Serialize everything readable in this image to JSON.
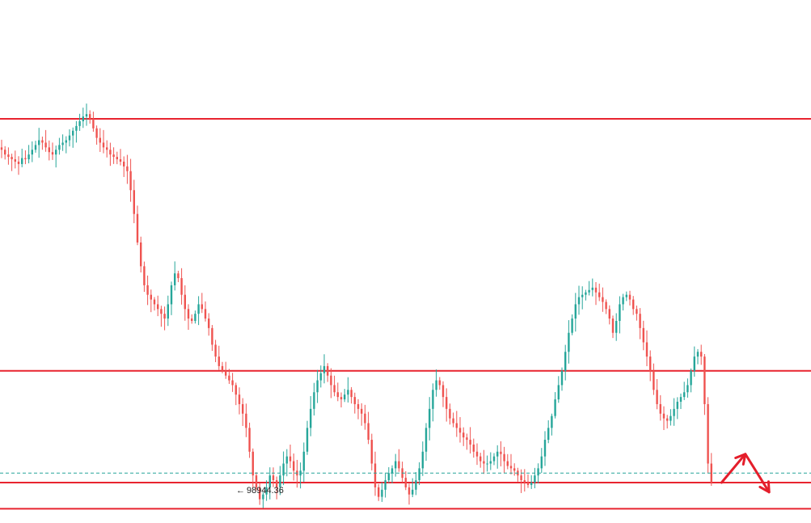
{
  "chart_data": {
    "type": "candlestick",
    "title": "",
    "xlabel": "",
    "ylabel": "",
    "ylim": [
      98900,
      101100
    ],
    "colors": {
      "up": "#26a69a",
      "down": "#ef5350",
      "level": "#e8242f",
      "price": "#26a69a",
      "projection": "#e41e2b"
    },
    "levels": [
      100600,
      99540,
      99070,
      98960
    ],
    "current_price": 99110,
    "session_low": {
      "value": 98944.36,
      "label": "98944.36"
    },
    "projection": [
      {
        "bar": 212,
        "value": 99070
      },
      {
        "bar": 219,
        "value": 99190
      },
      {
        "bar": 226,
        "value": 99030
      }
    ],
    "closes": [
      100470,
      100450,
      100440,
      100430,
      100420,
      100410,
      100435,
      100430,
      100450,
      100470,
      100490,
      100510,
      100500,
      100480,
      100460,
      100450,
      100470,
      100490,
      100500,
      100510,
      100530,
      100550,
      100570,
      100590,
      100610,
      100620,
      100600,
      100560,
      100520,
      100500,
      100480,
      100470,
      100450,
      100440,
      100430,
      100420,
      100400,
      100380,
      100300,
      100200,
      100080,
      99980,
      99900,
      99860,
      99840,
      99820,
      99800,
      99780,
      99760,
      99820,
      99900,
      99950,
      99930,
      99860,
      99800,
      99760,
      99750,
      99780,
      99820,
      99800,
      99760,
      99720,
      99650,
      99600,
      99560,
      99540,
      99520,
      99500,
      99480,
      99440,
      99400,
      99360,
      99300,
      99200,
      99100,
      99050,
      99000,
      99020,
      99050,
      99100,
      99080,
      99050,
      99100,
      99150,
      99180,
      99160,
      99120,
      99100,
      99120,
      99200,
      99300,
      99380,
      99450,
      99500,
      99530,
      99560,
      99520,
      99480,
      99450,
      99430,
      99420,
      99440,
      99460,
      99430,
      99400,
      99380,
      99360,
      99320,
      99250,
      99150,
      99050,
      99010,
      99040,
      99080,
      99110,
      99130,
      99160,
      99130,
      99090,
      99050,
      99020,
      99040,
      99080,
      99130,
      99200,
      99300,
      99380,
      99460,
      99500,
      99480,
      99430,
      99380,
      99340,
      99320,
      99300,
      99280,
      99260,
      99250,
      99230,
      99200,
      99180,
      99160,
      99150,
      99150,
      99160,
      99180,
      99200,
      99190,
      99160,
      99140,
      99130,
      99120,
      99100,
      99080,
      99070,
      99060,
      99070,
      99100,
      99130,
      99180,
      99250,
      99300,
      99350,
      99420,
      99480,
      99540,
      99620,
      99700,
      99760,
      99820,
      99850,
      99860,
      99870,
      99880,
      99890,
      99870,
      99850,
      99830,
      99800,
      99760,
      99700,
      99750,
      99820,
      99850,
      99860,
      99840,
      99800,
      99780,
      99720,
      99660,
      99600,
      99540,
      99460,
      99400,
      99360,
      99340,
      99330,
      99350,
      99380,
      99410,
      99430,
      99450,
      99480,
      99540,
      99600,
      99620,
      99600,
      99400,
      99150,
      99070
    ]
  }
}
